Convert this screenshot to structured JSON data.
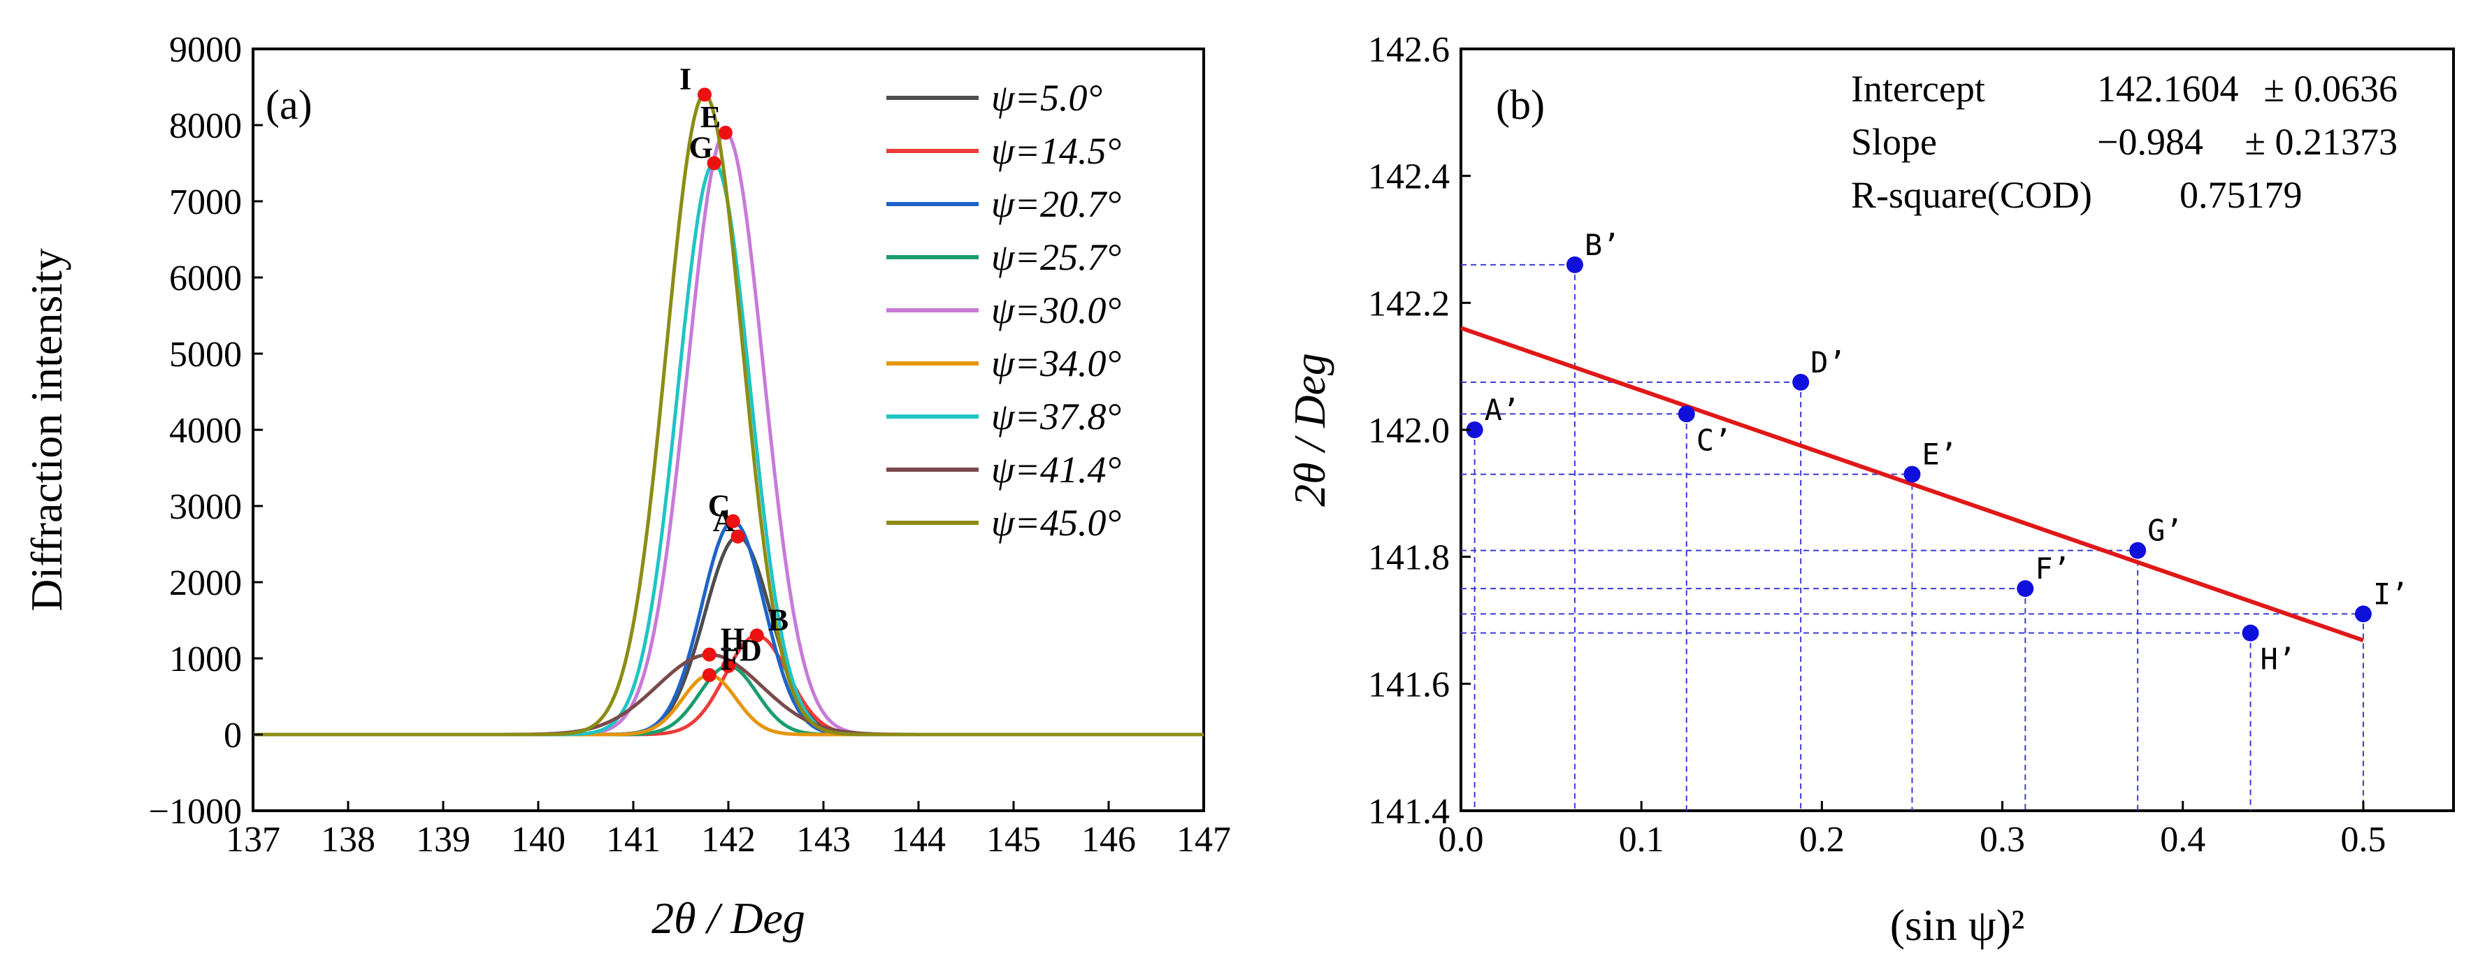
{
  "chart_data": [
    {
      "type": "line",
      "panel_label": "(a)",
      "xlabel": "2θ / Deg",
      "ylabel": "Diffraction intensity",
      "xlim": [
        137,
        147
      ],
      "ylim": [
        -1000,
        9000
      ],
      "x_ticks": [
        "137",
        "138",
        "139",
        "140",
        "141",
        "142",
        "143",
        "144",
        "145",
        "146",
        "147"
      ],
      "y_ticks": [
        "−1000",
        "0",
        "1000",
        "2000",
        "3000",
        "4000",
        "5000",
        "6000",
        "7000",
        "8000",
        "9000"
      ],
      "legend_position": "top-right",
      "series": [
        {
          "name": "ψ=5.0°",
          "color": "#4d4d4d",
          "peak_x": 142.1,
          "peak_y": 2600,
          "width": 0.35,
          "label": "A"
        },
        {
          "name": "ψ=14.5°",
          "color": "#ee3b3b",
          "peak_x": 142.3,
          "peak_y": 1300,
          "width": 0.33,
          "label": "B"
        },
        {
          "name": "ψ=20.7°",
          "color": "#1e64c8",
          "peak_x": 142.05,
          "peak_y": 2800,
          "width": 0.33,
          "label": "C"
        },
        {
          "name": "ψ=25.7°",
          "color": "#1a9e6e",
          "peak_x": 142.0,
          "peak_y": 900,
          "width": 0.3,
          "label": "D"
        },
        {
          "name": "ψ=30.0°",
          "color": "#c77ad8",
          "peak_x": 141.97,
          "peak_y": 7900,
          "width": 0.4,
          "label": "E"
        },
        {
          "name": "ψ=34.0°",
          "color": "#e5960a",
          "peak_x": 141.8,
          "peak_y": 780,
          "width": 0.28,
          "label": "F"
        },
        {
          "name": "ψ=37.8°",
          "color": "#20c4c4",
          "peak_x": 141.85,
          "peak_y": 7500,
          "width": 0.38,
          "label": "G"
        },
        {
          "name": "ψ=41.4°",
          "color": "#7a4a4a",
          "peak_x": 141.8,
          "peak_y": 1050,
          "width": 0.55,
          "label": "H"
        },
        {
          "name": "ψ=45.0°",
          "color": "#8c8c14",
          "peak_x": 141.75,
          "peak_y": 8400,
          "width": 0.4,
          "label": "I"
        }
      ],
      "marker_color": "#ee1111"
    },
    {
      "type": "scatter",
      "panel_label": "(b)",
      "xlabel": "(sin ψ)²",
      "ylabel": "2θ / Deg",
      "xlim": [
        0,
        0.55
      ],
      "ylim": [
        141.4,
        142.6
      ],
      "x_ticks": [
        "0.0",
        "0.1",
        "0.2",
        "0.3",
        "0.4",
        "0.5"
      ],
      "y_ticks": [
        "141.4",
        "141.6",
        "141.8",
        "142.0",
        "142.2",
        "142.4",
        "142.6"
      ],
      "points": [
        {
          "label": "A’",
          "x": 0.0076,
          "y": 142.0
        },
        {
          "label": "B’",
          "x": 0.0631,
          "y": 142.26
        },
        {
          "label": "C’",
          "x": 0.125,
          "y": 142.025
        },
        {
          "label": "D’",
          "x": 0.1883,
          "y": 142.075
        },
        {
          "label": "E’",
          "x": 0.25,
          "y": 141.93
        },
        {
          "label": "F’",
          "x": 0.3127,
          "y": 141.75
        },
        {
          "label": "G’",
          "x": 0.375,
          "y": 141.81
        },
        {
          "label": "H’",
          "x": 0.4375,
          "y": 141.68
        },
        {
          "label": "I’",
          "x": 0.5,
          "y": 141.71
        }
      ],
      "fit": {
        "intercept": 142.1604,
        "slope": -0.984,
        "x_range": [
          0,
          0.5
        ]
      },
      "point_color": "#1010dd",
      "fit_color": "#e01818",
      "guide_color": "#3a3ad8",
      "stats": [
        {
          "name": "Intercept",
          "value": "142.1604",
          "err": "± 0.0636"
        },
        {
          "name": "Slope",
          "value": "−0.984",
          "err": "± 0.21373"
        },
        {
          "name": "R-square(COD)",
          "value": "0.75179",
          "err": ""
        }
      ]
    }
  ]
}
